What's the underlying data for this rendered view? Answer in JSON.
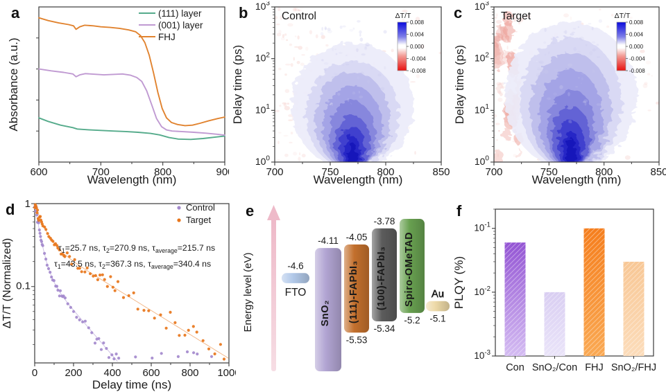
{
  "figure": {
    "panels": [
      {
        "letter": "a"
      },
      {
        "letter": "b"
      },
      {
        "letter": "c"
      },
      {
        "letter": "d"
      },
      {
        "letter": "e"
      },
      {
        "letter": "f"
      }
    ]
  },
  "chart_data": [
    {
      "panel": "a",
      "type": "line",
      "xlabel": "Wavelength (nm)",
      "ylabel": "Absorbance (a.u.)",
      "xlim": [
        600,
        900
      ],
      "xticks": [
        600,
        700,
        800,
        900
      ],
      "legend_position": "top-right",
      "series": [
        {
          "name": "(111) layer",
          "color": "#55ab8b",
          "points": [
            [
              600,
              0.285
            ],
            [
              615,
              0.262
            ],
            [
              635,
              0.238
            ],
            [
              655,
              0.222
            ],
            [
              662,
              0.213
            ],
            [
              680,
              0.208
            ],
            [
              700,
              0.204
            ],
            [
              720,
              0.2
            ],
            [
              740,
              0.197
            ],
            [
              760,
              0.192
            ],
            [
              780,
              0.185
            ],
            [
              795,
              0.175
            ],
            [
              810,
              0.158
            ],
            [
              825,
              0.148
            ],
            [
              845,
              0.146
            ],
            [
              865,
              0.152
            ],
            [
              885,
              0.161
            ],
            [
              900,
              0.168
            ]
          ]
        },
        {
          "name": "(001) layer",
          "color": "#c09ad2",
          "points": [
            [
              600,
              0.6
            ],
            [
              620,
              0.588
            ],
            [
              640,
              0.578
            ],
            [
              655,
              0.568
            ],
            [
              660,
              0.55
            ],
            [
              666,
              0.562
            ],
            [
              675,
              0.57
            ],
            [
              690,
              0.566
            ],
            [
              705,
              0.562
            ],
            [
              720,
              0.565
            ],
            [
              735,
              0.568
            ],
            [
              748,
              0.56
            ],
            [
              758,
              0.545
            ],
            [
              766,
              0.52
            ],
            [
              774,
              0.46
            ],
            [
              782,
              0.37
            ],
            [
              790,
              0.28
            ],
            [
              798,
              0.228
            ],
            [
              806,
              0.207
            ],
            [
              815,
              0.2
            ],
            [
              830,
              0.197
            ],
            [
              850,
              0.192
            ],
            [
              870,
              0.186
            ],
            [
              890,
              0.178
            ],
            [
              900,
              0.173
            ]
          ]
        },
        {
          "name": "FHJ",
          "color": "#e1832f",
          "points": [
            [
              600,
              0.93
            ],
            [
              615,
              0.912
            ],
            [
              632,
              0.897
            ],
            [
              648,
              0.886
            ],
            [
              656,
              0.878
            ],
            [
              660,
              0.856
            ],
            [
              666,
              0.872
            ],
            [
              674,
              0.882
            ],
            [
              688,
              0.878
            ],
            [
              700,
              0.872
            ],
            [
              715,
              0.868
            ],
            [
              730,
              0.862
            ],
            [
              745,
              0.852
            ],
            [
              756,
              0.84
            ],
            [
              764,
              0.815
            ],
            [
              771,
              0.77
            ],
            [
              778,
              0.69
            ],
            [
              785,
              0.575
            ],
            [
              792,
              0.45
            ],
            [
              799,
              0.345
            ],
            [
              806,
              0.285
            ],
            [
              814,
              0.255
            ],
            [
              824,
              0.242
            ],
            [
              836,
              0.235
            ],
            [
              848,
              0.238
            ],
            [
              860,
              0.25
            ],
            [
              874,
              0.266
            ],
            [
              888,
              0.28
            ],
            [
              900,
              0.29
            ]
          ]
        }
      ]
    },
    {
      "panel": "b",
      "type": "heatmap",
      "title": "Control",
      "xlabel": "Wavelength (nm)",
      "ylabel": "Delay time (ps)",
      "xlim": [
        700,
        850
      ],
      "xticks": [
        700,
        750,
        800,
        850
      ],
      "ytick_exponents": [
        0,
        1,
        2,
        3
      ],
      "colorbar": {
        "title": "ΔT/T",
        "ticks": [
          "0.008",
          "0.004",
          "0.000",
          "-0.004",
          "-0.008"
        ],
        "top_color": "#0b0bdd",
        "mid_color": "#ffffff",
        "bottom_color": "#e81111"
      },
      "bleach_center_nm": 770,
      "negative_speckle_color": "#f2bcb6",
      "red_band": false,
      "blob_levels": [
        [
          55,
          200,
          "#ebebfa"
        ],
        [
          42,
          90,
          "#d8d8f4"
        ],
        [
          34,
          55,
          "#bdbdec"
        ],
        [
          27,
          30,
          "#a2a2e5"
        ],
        [
          21,
          15,
          "#8484dc"
        ],
        [
          16,
          8,
          "#6060d4"
        ],
        [
          11,
          5,
          "#3d3dcd"
        ],
        [
          7,
          3.2,
          "#2424c5"
        ],
        [
          3.5,
          2.4,
          "#1212b8"
        ]
      ]
    },
    {
      "panel": "c",
      "type": "heatmap",
      "title": "Target",
      "xlabel": "Wavelength (nm)",
      "ylabel": "Delay time (ps)",
      "xlim": [
        700,
        850
      ],
      "xticks": [
        700,
        750,
        800,
        850
      ],
      "ytick_exponents": [
        0,
        1,
        2,
        3
      ],
      "colorbar": {
        "title": "ΔT/T",
        "ticks": [
          "0.008",
          "0.004",
          "0.000",
          "-0.004",
          "-0.008"
        ],
        "top_color": "#0b0bdd",
        "mid_color": "#ffffff",
        "bottom_color": "#e81111"
      },
      "bleach_center_nm": 770,
      "negative_speckle_color": "#f2bcb6",
      "red_band": true,
      "red_band_range_nm": [
        700,
        724
      ],
      "blob_levels": [
        [
          60,
          520,
          "#ebebfa"
        ],
        [
          46,
          260,
          "#d8d8f4"
        ],
        [
          37,
          130,
          "#bdbdec"
        ],
        [
          29,
          62,
          "#a2a2e5"
        ],
        [
          22,
          26,
          "#8484dc"
        ],
        [
          17,
          12,
          "#6060d4"
        ],
        [
          12,
          6.5,
          "#3d3dcd"
        ],
        [
          8,
          4,
          "#2424c5"
        ],
        [
          4,
          3,
          "#1212b8"
        ]
      ]
    },
    {
      "panel": "d",
      "type": "scatter",
      "xlabel": "Delay time (ns)",
      "ylabel": "ΔT/T (Normalized)",
      "xlim": [
        0,
        1000
      ],
      "xticks": [
        0,
        200,
        400,
        600,
        800,
        1000
      ],
      "ylim": [
        0.012,
        1
      ],
      "ytick_labels": [
        "1",
        "0.1"
      ],
      "unit": "ns",
      "series": [
        {
          "name": "Control",
          "color": "#a48acd",
          "ann_color": "#b6a3de",
          "tau1": "25.7",
          "tau2": "270.9",
          "tau_average": "215.7",
          "fit_draw": {
            "a1": 0.82,
            "tau1": 25.7,
            "a2": 0.18,
            "tau2": 160
          },
          "t_max": 920,
          "ann_y": 80
        },
        {
          "name": "Target",
          "color": "#e8761b",
          "ann_color": "#e8822d",
          "tau1": "43.5",
          "tau2": "367.3",
          "tau_average": "340.4",
          "fit_draw": {
            "a1": 0.62,
            "tau1": 43.5,
            "a2": 0.38,
            "tau2": 300
          },
          "t_max": 1000,
          "ann_y": 103
        }
      ]
    },
    {
      "panel": "e",
      "type": "energy-diagram",
      "axis_label": "Energy level (eV)",
      "levels": [
        {
          "name": "FTO",
          "label": "FTO",
          "color": "#b2c9e9",
          "top_eV": -4.53,
          "bottom_eV": -4.7,
          "top_label": "-4.6",
          "bottom_label": null,
          "name_placement": "below"
        },
        {
          "name": "SnO2",
          "label": "SnO₂",
          "color": "#b2a5d3",
          "top_eV": -4.11,
          "bottom_eV": -6.18,
          "top_label": "-4.11",
          "bottom_label": null,
          "name_placement": "inside"
        },
        {
          "name": "(111)-FAPbI3",
          "label": "(111)-FAPbI₃",
          "color": "#c3702d",
          "top_eV": -4.05,
          "bottom_eV": -5.53,
          "top_label": "-4.05",
          "bottom_label": "-5.53",
          "name_placement": "inside"
        },
        {
          "name": "(100)-FAPbI3",
          "label": "(100)-FAPbI₃",
          "color": "#5c5c5c",
          "top_eV": -3.78,
          "bottom_eV": -5.34,
          "top_label": "-3.78",
          "bottom_label": "-5.34",
          "name_placement": "inside"
        },
        {
          "name": "Spiro-OMeTAD",
          "label": "Spiro-OMeTAD",
          "color": "#68a050",
          "top_eV": -3.62,
          "bottom_eV": -5.2,
          "top_label": null,
          "bottom_label": "-5.2",
          "name_placement": "inside"
        },
        {
          "name": "Au",
          "label": "Au",
          "color": "#edd9a7",
          "top_eV": -5.0,
          "bottom_eV": -5.17,
          "top_label": "Au",
          "bottom_label": "-5.1",
          "name_placement": "above"
        }
      ]
    },
    {
      "panel": "f",
      "type": "bar",
      "ylabel": "PLQY (%)",
      "ylim": [
        0.001,
        0.2
      ],
      "ytick_exponents": [
        -1,
        -2,
        -3
      ],
      "categories": [
        "Con",
        "SnO₂/Con",
        "FHJ",
        "SnO₂/FHJ"
      ],
      "values": [
        0.06,
        0.01,
        0.1,
        0.03
      ],
      "bars": [
        {
          "label": "Con",
          "value": 0.06,
          "color_top": "#9455d4",
          "color_bottom": "#d4bcf2"
        },
        {
          "label": "SnO₂/Con",
          "value": 0.01,
          "color_top": "#d9cef2",
          "color_bottom": "#eae4f9"
        },
        {
          "label": "FHJ",
          "value": 0.1,
          "color_top": "#f57e1d",
          "color_bottom": "#faa953"
        },
        {
          "label": "SnO₂/FHJ",
          "value": 0.03,
          "color_top": "#f8c795",
          "color_bottom": "#fcdcba"
        }
      ]
    }
  ]
}
